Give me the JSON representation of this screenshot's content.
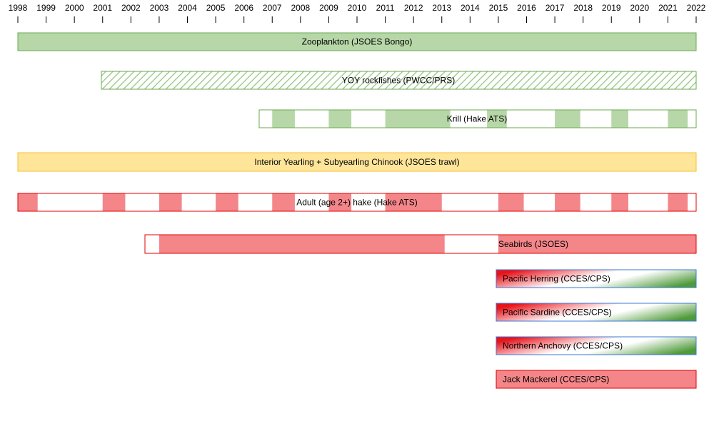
{
  "chart_data": {
    "type": "gantt-timeline",
    "title": "",
    "axis": {
      "start_year": 1998,
      "end_year": 2022,
      "tick_labels": [
        "1998",
        "1999",
        "2000",
        "2001",
        "2002",
        "2003",
        "2004",
        "2005",
        "2006",
        "2007",
        "2008",
        "2009",
        "2010",
        "2011",
        "2012",
        "2013",
        "2014",
        "2015",
        "2016",
        "2017",
        "2018",
        "2019",
        "2020",
        "2021",
        "2022"
      ]
    },
    "colors": {
      "green_fill": "#b7d7a8",
      "green_stroke": "#6aa84f",
      "hatch_stroke": "#93c47d",
      "yellow_fill": "#ffe599",
      "yellow_stroke": "#f1c232",
      "red_fill": "#f4868a",
      "red_stroke": "#e00000",
      "blue_stroke": "#3c78d8",
      "white": "#ffffff"
    },
    "series": [
      {
        "name": "Zooplankton (JSOES Bongo)",
        "start": 1998.0,
        "end": 2022.0,
        "style": "solid",
        "fill": "green",
        "coverage": [
          [
            1998.0,
            2022.0
          ]
        ]
      },
      {
        "name": "YOY rockfishes (PWCC/PRS)",
        "start": 2001.0,
        "end": 2022.0,
        "style": "hatched",
        "fill": "green",
        "coverage": [
          [
            2001.0,
            2022.0
          ]
        ]
      },
      {
        "name": "Krill (Hake ATS)",
        "start": 2007.0,
        "end": 2022.0,
        "style": "segmented",
        "fill": "green",
        "coverage": [
          [
            2007.0,
            2007.8
          ],
          [
            2009.0,
            2009.8
          ],
          [
            2011.0,
            2013.3
          ],
          [
            2014.6,
            2015.3
          ],
          [
            2017.0,
            2017.9
          ],
          [
            2019.0,
            2019.6
          ],
          [
            2021.0,
            2021.7
          ]
        ]
      },
      {
        "name": "Interior Yearling + Subyearling Chinook (JSOES trawl)",
        "start": 1998.0,
        "end": 2022.0,
        "style": "solid",
        "fill": "yellow",
        "coverage": [
          [
            1998.0,
            2022.0
          ]
        ]
      },
      {
        "name": "Adult (age 2+) hake (Hake ATS)",
        "start": 1998.0,
        "end": 2022.0,
        "style": "segmented",
        "fill": "red",
        "coverage": [
          [
            1998.0,
            1998.7
          ],
          [
            2001.0,
            2001.8
          ],
          [
            2003.0,
            2003.8
          ],
          [
            2005.0,
            2005.8
          ],
          [
            2007.0,
            2007.8
          ],
          [
            2009.0,
            2009.8
          ],
          [
            2011.0,
            2013.0
          ],
          [
            2015.0,
            2015.9
          ],
          [
            2017.0,
            2017.9
          ],
          [
            2019.0,
            2019.6
          ],
          [
            2021.0,
            2021.7
          ]
        ]
      },
      {
        "name": "Seabirds (JSOES)",
        "start": 2003.0,
        "end": 2022.0,
        "style": "segmented",
        "fill": "red",
        "coverage": [
          [
            2003.0,
            2013.1
          ],
          [
            2015.0,
            2022.0
          ]
        ]
      },
      {
        "name": "Pacific Herring (CCES/CPS)",
        "start": 2015.0,
        "end": 2022.0,
        "style": "gradient",
        "fill": "red-white-green",
        "coverage": [
          [
            2015.0,
            2022.0
          ]
        ]
      },
      {
        "name": "Pacific Sardine (CCES/CPS)",
        "start": 2015.0,
        "end": 2022.0,
        "style": "gradient",
        "fill": "red-white-green",
        "coverage": [
          [
            2015.0,
            2022.0
          ]
        ]
      },
      {
        "name": "Northern Anchovy (CCES/CPS)",
        "start": 2015.0,
        "end": 2022.0,
        "style": "gradient",
        "fill": "red-white-green",
        "coverage": [
          [
            2015.0,
            2022.0
          ]
        ]
      },
      {
        "name": "Jack Mackerel (CCES/CPS)",
        "start": 2015.0,
        "end": 2022.0,
        "style": "solid",
        "fill": "red",
        "coverage": [
          [
            2015.0,
            2022.0
          ]
        ]
      }
    ]
  }
}
